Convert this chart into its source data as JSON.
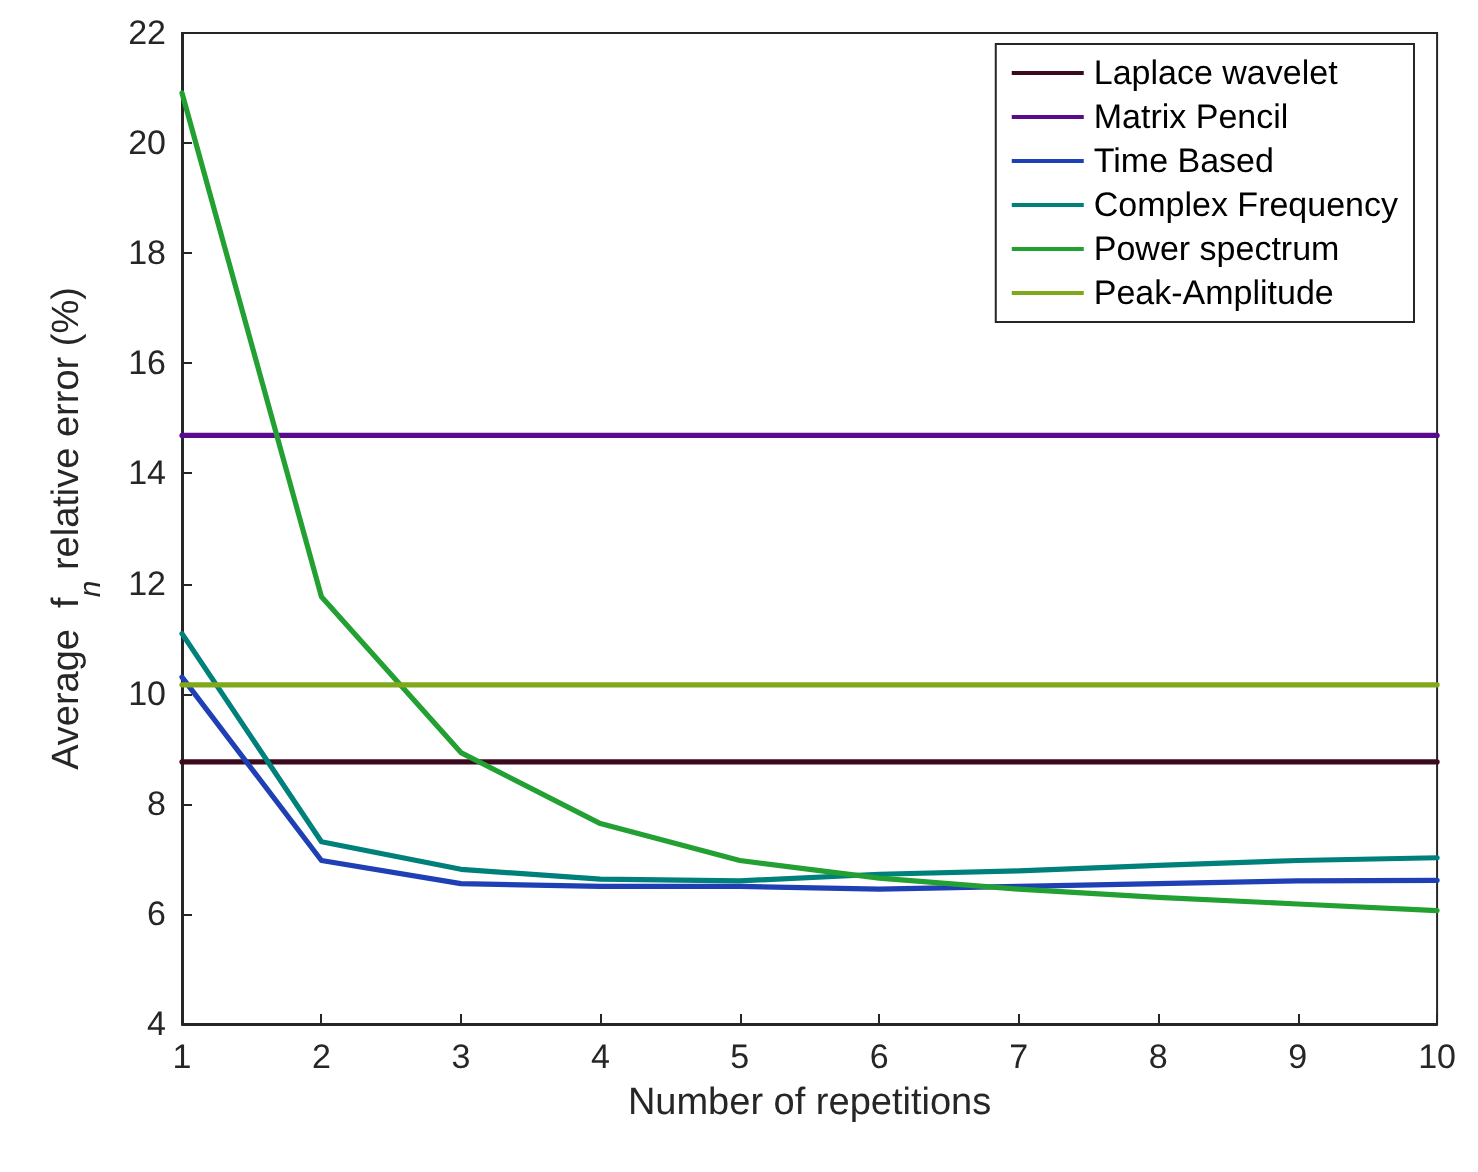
{
  "chart_data": {
    "type": "line",
    "xlabel": "Number of repetitions",
    "ylabel": "Average  f$_{n}$ relative error (%)",
    "x": [
      1,
      2,
      3,
      4,
      5,
      6,
      7,
      8,
      9,
      10
    ],
    "series": [
      {
        "name": "Laplace wavelet",
        "color": "#3b0a1e",
        "values": [
          8.76,
          8.76,
          8.76,
          8.76,
          8.76,
          8.76,
          8.76,
          8.76,
          8.76,
          8.76
        ]
      },
      {
        "name": "Matrix Pencil",
        "color": "#5a0a8c",
        "values": [
          14.69,
          14.69,
          14.69,
          14.69,
          14.69,
          14.69,
          14.69,
          14.69,
          14.69,
          14.69
        ]
      },
      {
        "name": "Time Based",
        "color": "#1f3fb5",
        "values": [
          10.3,
          6.97,
          6.55,
          6.5,
          6.5,
          6.45,
          6.5,
          6.55,
          6.6,
          6.61
        ]
      },
      {
        "name": "Complex Frequency",
        "color": "#00807a",
        "values": [
          11.09,
          7.31,
          6.81,
          6.63,
          6.6,
          6.72,
          6.78,
          6.88,
          6.97,
          7.02
        ]
      },
      {
        "name": "Power spectrum",
        "color": "#22a032",
        "values": [
          20.91,
          11.76,
          8.93,
          7.64,
          6.97,
          6.65,
          6.45,
          6.3,
          6.18,
          6.06
        ]
      },
      {
        "name": "Peak-Amplitude",
        "color": "#80a81a",
        "values": [
          10.16,
          10.16,
          10.16,
          10.16,
          10.16,
          10.16,
          10.16,
          10.16,
          10.16,
          10.16
        ]
      }
    ],
    "xlim": [
      1,
      10
    ],
    "xticks": [
      1,
      2,
      3,
      4,
      5,
      6,
      7,
      8,
      9,
      10
    ],
    "ylim": [
      4,
      22
    ],
    "yticks": [
      4,
      6,
      8,
      10,
      12,
      14,
      16,
      18,
      20,
      22
    ],
    "grid": false,
    "legend": "top right",
    "marker": "none",
    "line_style": "solid"
  }
}
